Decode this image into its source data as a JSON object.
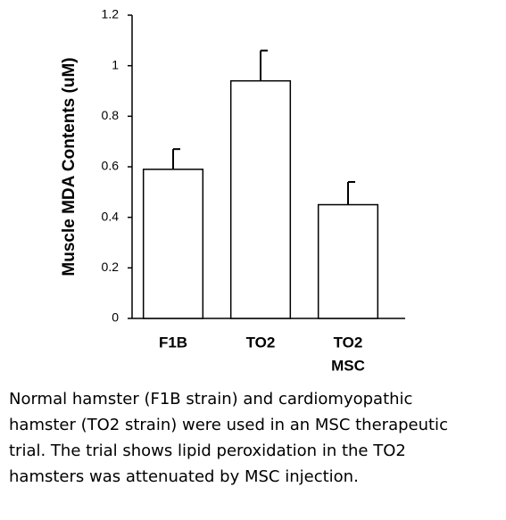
{
  "chart_data": {
    "type": "bar",
    "y_label": "Muscle MDA Contents (uM)",
    "categories": [
      [
        "F1B"
      ],
      [
        "TO2"
      ],
      [
        "TO2",
        "MSC"
      ]
    ],
    "values": [
      0.59,
      0.94,
      0.45
    ],
    "errors": [
      0.08,
      0.12,
      0.09
    ],
    "color": "#ffffff",
    "ylim": [
      0,
      1.2
    ],
    "yticks": [
      0,
      0.2,
      0.4,
      0.6,
      0.8,
      1,
      1.2
    ]
  },
  "caption": [
    "Normal hamster (F1B strain) and cardiomyopathic",
    "hamster (TO2 strain) were used in an MSC therapeutic",
    "trial. The trial shows lipid peroxidation in the TO2",
    "hamsters was attenuated by MSC injection."
  ]
}
